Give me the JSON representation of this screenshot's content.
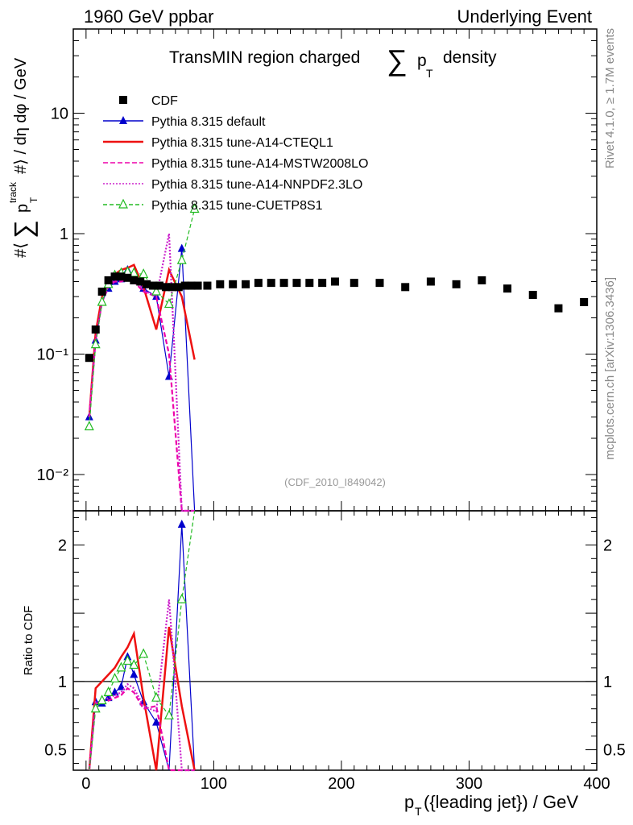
{
  "header": {
    "left": "1960 GeV ppbar",
    "right": "Underlying Event"
  },
  "side_labels": {
    "rivet": "Rivet 4.1.0, ≥ 1.7M events",
    "mcplots": "mcplots.cern.ch [arXiv:1306.3436]"
  },
  "chart_data": {
    "type": "line",
    "title": "TransMIN region charged ∑ p_T density",
    "title_main": "TransMIN region charged",
    "title_sum": "∑",
    "title_p": "p",
    "title_sub": "T",
    "title_tail": "density",
    "watermark": "(CDF_2010_I849042)",
    "ylabel_parts": {
      "hash": "#⟨",
      "sum": "∑",
      "p": "p",
      "sup": "track",
      "sub": "T",
      "tail": "#⟩ / dη dφ / GeV"
    },
    "xlabel_parts": {
      "p": "p",
      "sub": "T",
      "tail": "({leading jet}) / GeV"
    },
    "ratio_ylabel": "Ratio to CDF",
    "xlim": [
      -10,
      400
    ],
    "ylim": [
      0.005,
      50
    ],
    "ratio_ylim": [
      0.35,
      2.25
    ],
    "x_ticks": [
      {
        "v": 0,
        "label": "0"
      },
      {
        "v": 100,
        "label": "100"
      },
      {
        "v": 200,
        "label": "200"
      },
      {
        "v": 300,
        "label": "300"
      },
      {
        "v": 400,
        "label": "400"
      }
    ],
    "y_ticks": [
      {
        "v": 10,
        "label": "10"
      },
      {
        "v": 1,
        "label": "1"
      },
      {
        "v": 0.1,
        "label": "10⁻¹"
      },
      {
        "v": 0.01,
        "label": "10⁻²"
      }
    ],
    "ratio_ticks": [
      {
        "v": 0.5,
        "label": "0.5"
      },
      {
        "v": 1,
        "label": "1"
      },
      {
        "v": 2,
        "label": "2"
      }
    ],
    "legend": [
      {
        "name": "CDF",
        "color": "#000000",
        "dash": "",
        "marker": "square"
      },
      {
        "name": "Pythia 8.315 default",
        "color": "#0000cc",
        "dash": "",
        "marker": "triangle"
      },
      {
        "name": "Pythia 8.315 tune-A14-CTEQL1",
        "color": "#ee1111",
        "dash": "",
        "marker": "none"
      },
      {
        "name": "Pythia 8.315 tune-A14-MSTW2008LO",
        "color": "#ee00aa",
        "dash": "6,3",
        "marker": "none"
      },
      {
        "name": "Pythia 8.315 tune-A14-NNPDF2.3LO",
        "color": "#cc22cc",
        "dash": "2,2",
        "marker": "none"
      },
      {
        "name": "Pythia 8.315 tune-CUETP8S1",
        "color": "#22bb22",
        "dash": "5,3",
        "marker": "opentriangle"
      }
    ],
    "cdf": {
      "x": [
        2.5,
        7.5,
        12.5,
        17.5,
        22.5,
        27.5,
        32.5,
        37.5,
        42.5,
        47.5,
        52.5,
        57.5,
        62.5,
        67.5,
        72.5,
        77.5,
        82.5,
        87.5,
        95,
        105,
        115,
        125,
        135,
        145,
        155,
        165,
        175,
        185,
        195,
        210,
        230,
        250,
        270,
        290,
        310,
        330,
        350,
        370,
        390
      ],
      "y": [
        0.093,
        0.16,
        0.33,
        0.41,
        0.44,
        0.44,
        0.43,
        0.41,
        0.4,
        0.38,
        0.37,
        0.37,
        0.36,
        0.36,
        0.36,
        0.37,
        0.37,
        0.37,
        0.37,
        0.38,
        0.38,
        0.38,
        0.39,
        0.39,
        0.39,
        0.39,
        0.39,
        0.39,
        0.4,
        0.39,
        0.39,
        0.36,
        0.4,
        0.38,
        0.41,
        0.35,
        0.31,
        0.24,
        0.27
      ]
    },
    "series": [
      {
        "name": "Pythia 8.315 default",
        "x": [
          2.5,
          7.5,
          12.5,
          17.5,
          22.5,
          27.5,
          32.5,
          37.5,
          45,
          55,
          65,
          75,
          85
        ],
        "y": [
          0.03,
          0.13,
          0.27,
          0.35,
          0.4,
          0.42,
          0.5,
          0.44,
          0.35,
          0.3,
          0.065,
          0.75,
          0.001
        ],
        "ratio": [
          0.32,
          0.85,
          0.84,
          0.88,
          0.92,
          0.96,
          1.18,
          1.05,
          0.85,
          0.7,
          0.2,
          2.15,
          0.2
        ]
      },
      {
        "name": "Pythia 8.315 tune-A14-CTEQL1",
        "x": [
          2.5,
          7.5,
          12.5,
          17.5,
          22.5,
          27.5,
          32.5,
          37.5,
          45,
          55,
          65,
          75,
          85
        ],
        "y": [
          0.03,
          0.15,
          0.3,
          0.4,
          0.46,
          0.5,
          0.52,
          0.55,
          0.36,
          0.16,
          0.5,
          0.3,
          0.09
        ],
        "ratio": [
          0.32,
          0.95,
          1.0,
          1.05,
          1.1,
          1.18,
          1.25,
          1.35,
          0.88,
          0.35,
          1.4,
          0.82,
          0.2
        ]
      },
      {
        "name": "Pythia 8.315 tune-A14-MSTW2008LO",
        "x": [
          2.5,
          7.5,
          12.5,
          17.5,
          22.5,
          27.5,
          32.5,
          37.5,
          45,
          55,
          65,
          75,
          85
        ],
        "y": [
          0.03,
          0.13,
          0.27,
          0.36,
          0.4,
          0.4,
          0.42,
          0.4,
          0.33,
          0.3,
          0.1,
          0.001,
          0.001
        ],
        "ratio": [
          0.32,
          0.84,
          0.84,
          0.86,
          0.88,
          0.9,
          0.95,
          0.92,
          0.8,
          0.82,
          0.2,
          0.2,
          0.2
        ]
      },
      {
        "name": "Pythia 8.315 tune-A14-NNPDF2.3LO",
        "x": [
          2.5,
          7.5,
          12.5,
          17.5,
          22.5,
          27.5,
          32.5,
          37.5,
          45,
          55,
          65,
          75,
          85
        ],
        "y": [
          0.03,
          0.13,
          0.27,
          0.37,
          0.41,
          0.42,
          0.43,
          0.42,
          0.34,
          0.3,
          1.0,
          0.001,
          0.001
        ],
        "ratio": [
          0.32,
          0.85,
          0.85,
          0.88,
          0.9,
          0.92,
          0.98,
          0.95,
          0.82,
          0.78,
          1.6,
          0.2,
          0.2
        ]
      },
      {
        "name": "Pythia 8.315 tune-CUETP8S1",
        "x": [
          2.5,
          7.5,
          12.5,
          17.5,
          22.5,
          27.5,
          32.5,
          37.5,
          45,
          55,
          65,
          75,
          85
        ],
        "y": [
          0.025,
          0.12,
          0.27,
          0.38,
          0.45,
          0.47,
          0.48,
          0.47,
          0.46,
          0.33,
          0.26,
          0.6,
          1.6
        ],
        "ratio": [
          0.27,
          0.8,
          0.86,
          0.92,
          1.02,
          1.1,
          1.15,
          1.12,
          1.2,
          0.88,
          0.75,
          1.6,
          2.4
        ]
      }
    ]
  }
}
